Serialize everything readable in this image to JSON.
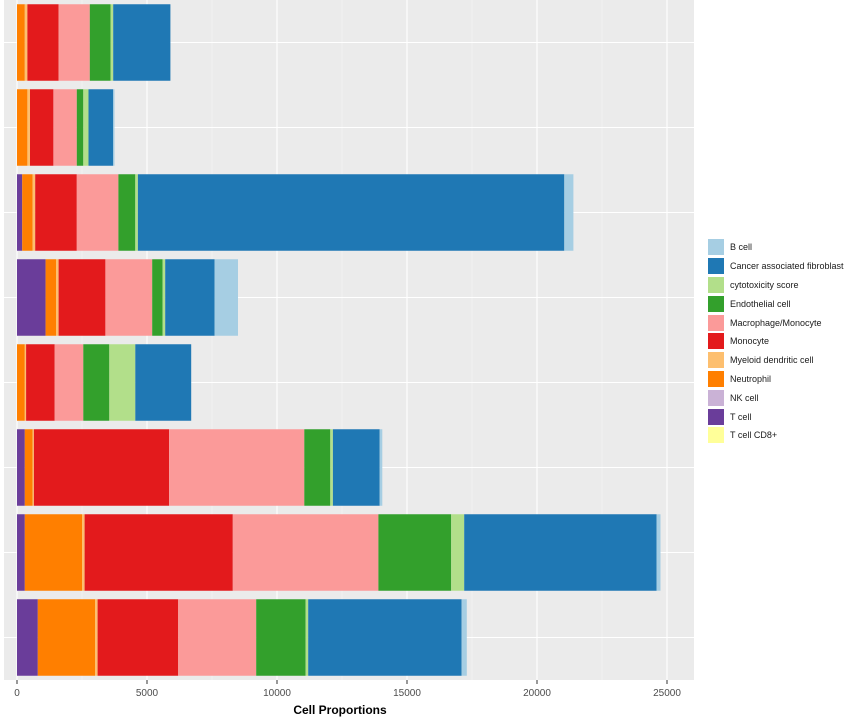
{
  "chart_data": {
    "type": "bar",
    "orientation": "horizontal",
    "stacked": true,
    "title": "",
    "xlabel": "Cell Proportions",
    "ylabel": "",
    "xlim": [
      0,
      25000
    ],
    "xticks": [
      0,
      5000,
      10000,
      15000,
      20000,
      25000
    ],
    "grid": true,
    "legend_position": "right",
    "categories": [
      "",
      "",
      "",
      "",
      "",
      "",
      "",
      ""
    ],
    "series": [
      {
        "name": "T cell",
        "color": "#6a3d9a",
        "values": [
          0,
          0,
          200,
          1100,
          0,
          300,
          300,
          800
        ]
      },
      {
        "name": "NK cell",
        "color": "#cab2d6",
        "values": [
          0,
          0,
          0,
          0,
          0,
          0,
          0,
          0
        ]
      },
      {
        "name": "Neutrophil",
        "color": "#ff7f00",
        "values": [
          300,
          400,
          400,
          400,
          300,
          300,
          2200,
          2200
        ]
      },
      {
        "name": "Myeloid dendritic cell",
        "color": "#fdbf6f",
        "values": [
          100,
          100,
          100,
          100,
          50,
          50,
          100,
          100
        ]
      },
      {
        "name": "Monocyte",
        "color": "#e31a1c",
        "values": [
          1200,
          900,
          1600,
          1800,
          1100,
          5200,
          5700,
          3100
        ]
      },
      {
        "name": "Macrophage/Monocyte",
        "color": "#fb9a99",
        "values": [
          1200,
          900,
          1600,
          1800,
          1100,
          5200,
          5600,
          3000
        ]
      },
      {
        "name": "Endothelial cell",
        "color": "#33a02c",
        "values": [
          800,
          250,
          650,
          400,
          1000,
          1000,
          2800,
          1900
        ]
      },
      {
        "name": "cytotoxicity score",
        "color": "#b2df8a",
        "values": [
          100,
          200,
          100,
          100,
          1000,
          100,
          500,
          100
        ]
      },
      {
        "name": "Cancer associated fibroblast",
        "color": "#1f78b4",
        "values": [
          2200,
          950,
          16400,
          1900,
          2150,
          1800,
          7400,
          5900
        ]
      },
      {
        "name": "B cell",
        "color": "#a6cee3",
        "values": [
          0,
          50,
          350,
          900,
          0,
          100,
          150,
          200
        ]
      },
      {
        "name": "T cell CD8+",
        "color": "#ffff99",
        "values": [
          0,
          0,
          0,
          0,
          0,
          0,
          0,
          0
        ]
      }
    ],
    "legend_order": [
      "B cell",
      "Cancer associated fibroblast",
      "cytotoxicity score",
      "Endothelial cell",
      "Macrophage/Monocyte",
      "Monocyte",
      "Myeloid dendritic cell",
      "Neutrophil",
      "NK cell",
      "T cell",
      "T cell CD8+"
    ]
  }
}
